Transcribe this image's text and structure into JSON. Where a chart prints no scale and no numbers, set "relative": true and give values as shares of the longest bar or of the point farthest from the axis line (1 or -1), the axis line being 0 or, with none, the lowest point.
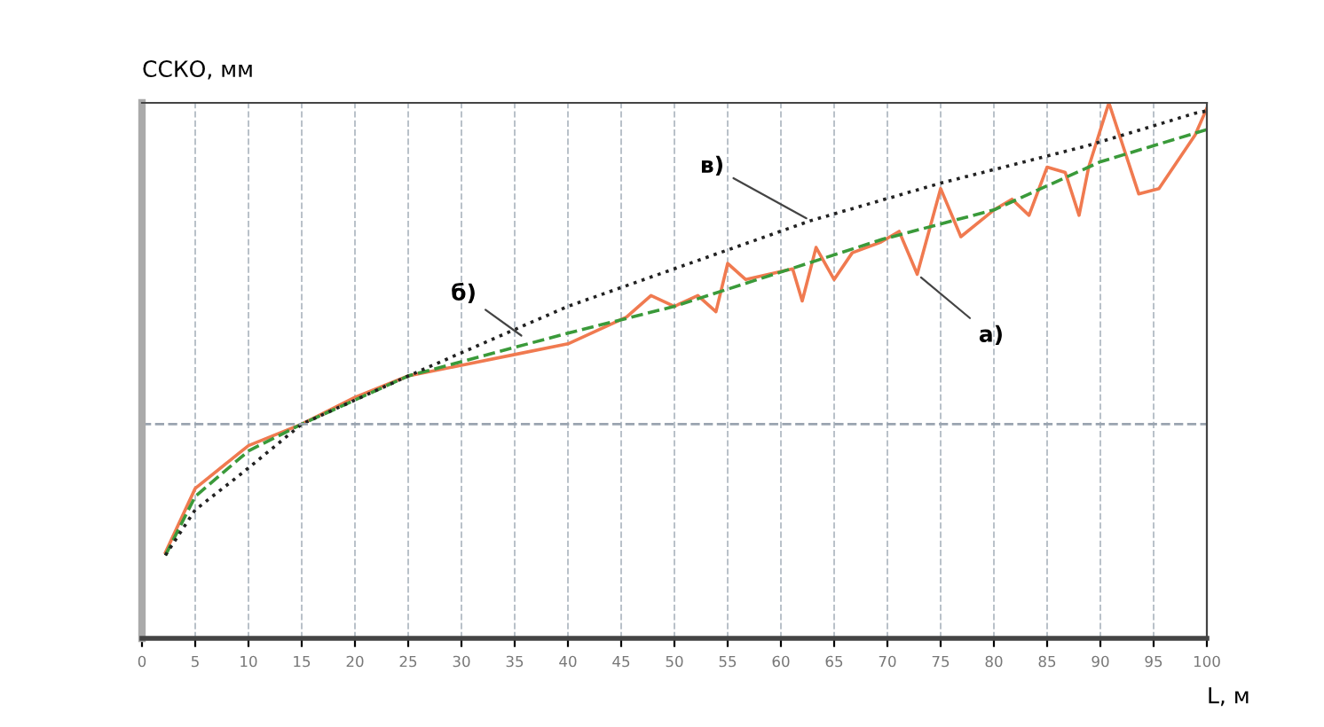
{
  "chart_data": {
    "type": "line",
    "relative": true,
    "ylabel": "ССКО, мм",
    "xlabel": "L, м",
    "xlim": [
      0,
      100
    ],
    "xticks": [
      0,
      5,
      10,
      15,
      20,
      25,
      30,
      35,
      40,
      45,
      50,
      55,
      60,
      65,
      70,
      75,
      80,
      85,
      90,
      95,
      100
    ],
    "grid": "x",
    "marker": "none",
    "ref_lines": [
      {
        "axis": "y",
        "value": 0.4,
        "color": "#9aa4b0",
        "line_style": "dashed"
      }
    ],
    "series": [
      {
        "color": "#f07a50",
        "line_style": "solid",
        "x": [
          2.2,
          5,
          10,
          15,
          20,
          25,
          30,
          35,
          40,
          45.5,
          47.8,
          50,
          52.2,
          53.9,
          55,
          56.7,
          61.1,
          62,
          63.3,
          65,
          66.7,
          69.4,
          71.1,
          72.8,
          75,
          76.9,
          80,
          81.7,
          83.3,
          85,
          86.7,
          88,
          88.9,
          90.8,
          93.6,
          95.5,
          97.2,
          98.9,
          100
        ],
        "values": [
          0.16,
          0.28,
          0.36,
          0.4,
          0.45,
          0.49,
          0.51,
          0.53,
          0.55,
          0.6,
          0.64,
          0.62,
          0.64,
          0.61,
          0.7,
          0.67,
          0.69,
          0.63,
          0.73,
          0.67,
          0.72,
          0.74,
          0.76,
          0.68,
          0.84,
          0.75,
          0.8,
          0.82,
          0.79,
          0.88,
          0.87,
          0.79,
          0.88,
          1.0,
          0.83,
          0.84,
          0.89,
          0.94,
          0.99
        ]
      },
      {
        "color": "#3a9a3a",
        "line_style": "dashed",
        "x": [
          2.2,
          5,
          10,
          15,
          25,
          40,
          50,
          69.5,
          80,
          90,
          100
        ],
        "values": [
          0.155,
          0.265,
          0.35,
          0.4,
          0.49,
          0.57,
          0.62,
          0.745,
          0.8,
          0.89,
          0.95
        ]
      },
      {
        "color": "#222222",
        "line_style": "dotted",
        "x": [
          2.2,
          5,
          9.5,
          15,
          25,
          40,
          62.8,
          75,
          88.8,
          98.8,
          100
        ],
        "values": [
          0.155,
          0.24,
          0.31,
          0.4,
          0.49,
          0.62,
          0.78,
          0.85,
          0.92,
          0.98,
          0.985
        ]
      }
    ],
    "annotations": [
      {
        "text": "а)",
        "x": 72.8,
        "y": 0.68
      },
      {
        "text": "б)",
        "x": 36,
        "y": 0.56
      },
      {
        "text": "в)",
        "x": 62.8,
        "y": 0.78
      }
    ]
  }
}
